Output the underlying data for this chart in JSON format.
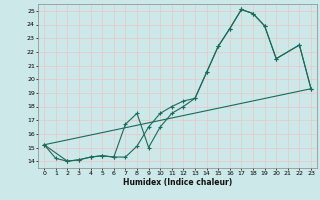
{
  "xlabel": "Humidex (Indice chaleur)",
  "bg_color": "#cce8e8",
  "grid_color": "#c8d8d8",
  "line_color": "#1a6b5a",
  "xlim": [
    -0.5,
    23.5
  ],
  "ylim": [
    13.5,
    25.5
  ],
  "xticks": [
    0,
    1,
    2,
    3,
    4,
    5,
    6,
    7,
    8,
    9,
    10,
    11,
    12,
    13,
    14,
    15,
    16,
    17,
    18,
    19,
    20,
    21,
    22,
    23
  ],
  "yticks": [
    14,
    15,
    16,
    17,
    18,
    19,
    20,
    21,
    22,
    23,
    24,
    25
  ],
  "series1_x": [
    0,
    1,
    2,
    3,
    4,
    5,
    6,
    7,
    8,
    9,
    10,
    11,
    12,
    13,
    14,
    15,
    16,
    17,
    18,
    19,
    20,
    22,
    23
  ],
  "series1_y": [
    15.2,
    14.2,
    14.0,
    14.1,
    14.3,
    14.4,
    14.3,
    14.3,
    15.1,
    16.5,
    17.5,
    18.0,
    18.4,
    18.6,
    20.5,
    22.4,
    23.7,
    25.1,
    24.8,
    23.9,
    21.5,
    22.5,
    19.3
  ],
  "series2_x": [
    0,
    2,
    3,
    4,
    5,
    6,
    7,
    8,
    9,
    10,
    11,
    12,
    13,
    14,
    15,
    16,
    17,
    18,
    19,
    20,
    22,
    23
  ],
  "series2_y": [
    15.2,
    14.0,
    14.1,
    14.3,
    14.4,
    14.3,
    16.7,
    17.5,
    15.0,
    16.5,
    17.5,
    18.0,
    18.6,
    20.5,
    22.4,
    23.7,
    25.1,
    24.8,
    23.9,
    21.5,
    22.5,
    19.3
  ],
  "series3_x": [
    0,
    23
  ],
  "series3_y": [
    15.2,
    19.3
  ]
}
